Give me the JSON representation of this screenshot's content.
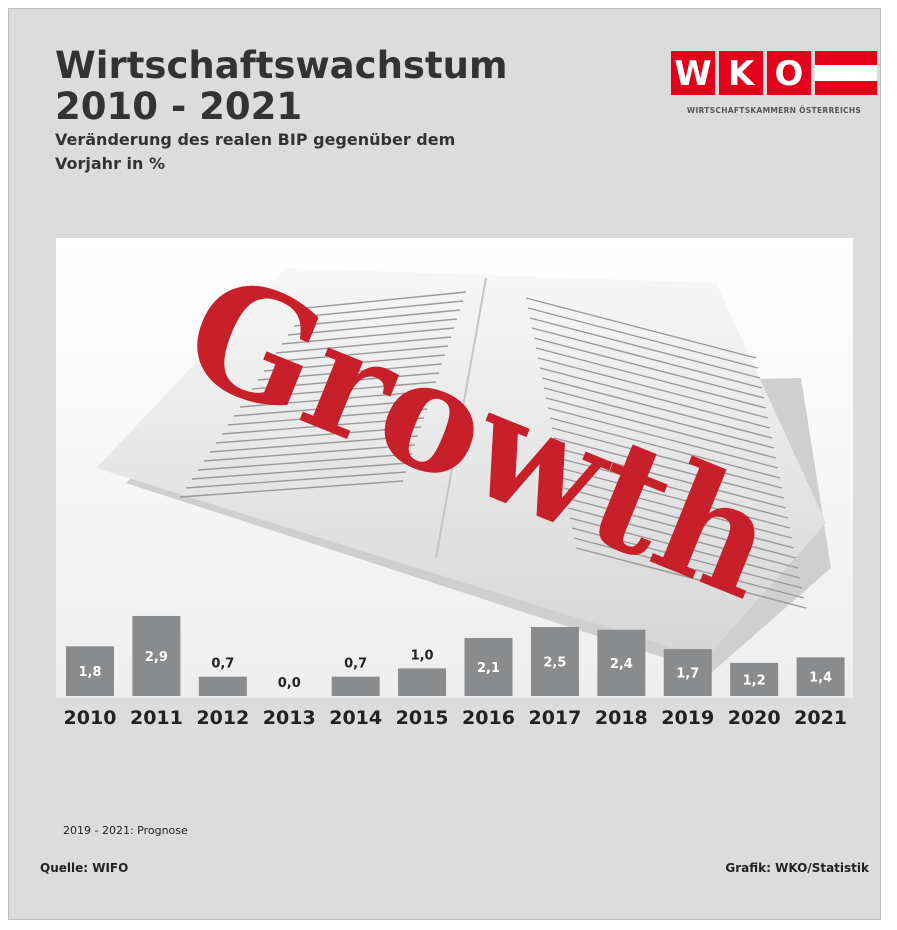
{
  "header": {
    "title_line1": "Wirtschaftswachstum",
    "title_line2": "2010 - 2021",
    "subtitle": "Veränderung des realen BIP gegenüber dem Vorjahr in %"
  },
  "logo": {
    "letters": [
      "W",
      "K",
      "O"
    ],
    "caption": "WIRTSCHAFTSKAMMERN ÖSTERREICHS",
    "color": "#e3001b"
  },
  "illustration": {
    "headline_word": "Growth",
    "headline_color": "#c8202a"
  },
  "chart_data": {
    "type": "bar",
    "categories": [
      "2010",
      "2011",
      "2012",
      "2013",
      "2014",
      "2015",
      "2016",
      "2017",
      "2018",
      "2019",
      "2020",
      "2021"
    ],
    "values": [
      1.8,
      2.9,
      0.7,
      0.0,
      0.7,
      1.0,
      2.1,
      2.5,
      2.4,
      1.7,
      1.2,
      1.4
    ],
    "value_labels": [
      "1,8",
      "2,9",
      "0,7",
      "0,0",
      "0,7",
      "1,0",
      "2,1",
      "2,5",
      "2,4",
      "1,7",
      "1,2",
      "1,4"
    ],
    "forecast_categories": [
      "2019",
      "2020",
      "2021"
    ],
    "bar_color": "#8a8b8d",
    "label_color_inside": "#ffffff",
    "label_color_outside": "#222222",
    "grid": false,
    "legend": "none"
  },
  "footer": {
    "note": "2019 - 2021: Prognose",
    "source": "Quelle: WIFO",
    "credit": "Grafik: WKO/Statistik"
  }
}
